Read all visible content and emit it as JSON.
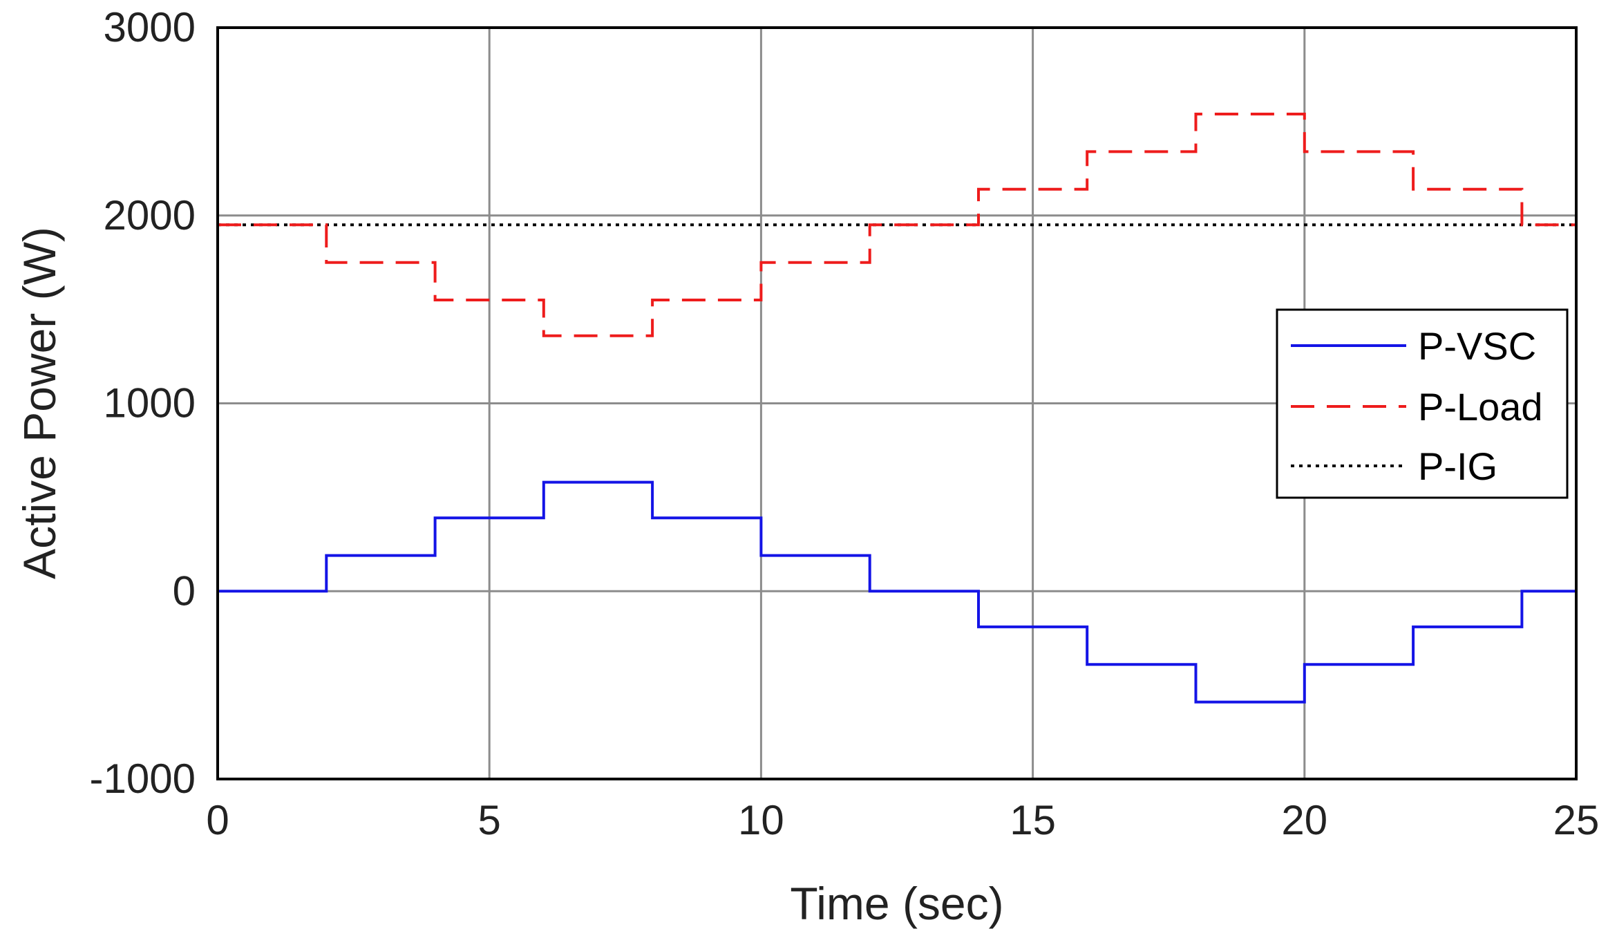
{
  "chart_data": {
    "type": "line",
    "xlabel": "Time (sec)",
    "ylabel": "Active Power (W)",
    "xlim": [
      0,
      25
    ],
    "ylim": [
      -1000,
      3000
    ],
    "x_ticks": [
      0,
      5,
      10,
      15,
      20,
      25
    ],
    "y_ticks": [
      -1000,
      0,
      1000,
      2000,
      3000
    ],
    "x_tick_labels": [
      "0",
      "5",
      "10",
      "15",
      "20",
      "25"
    ],
    "y_tick_labels": [
      "-1000",
      "0",
      "1000",
      "2000",
      "3000"
    ],
    "grid": true,
    "legend_position": "right",
    "series": [
      {
        "name": "P-VSC",
        "color": "#1414e6",
        "style": "solid",
        "step_x": [
          0,
          2,
          4,
          6,
          8,
          10,
          12,
          14,
          16,
          18,
          20,
          22,
          24,
          25
        ],
        "step_y": [
          0,
          190,
          390,
          580,
          390,
          190,
          0,
          -190,
          -390,
          -590,
          -390,
          -190,
          0
        ]
      },
      {
        "name": "P-Load",
        "color": "#ee1c1c",
        "style": "dashed",
        "step_x": [
          0,
          2,
          4,
          6,
          8,
          10,
          12,
          14,
          16,
          18,
          20,
          22,
          24,
          25
        ],
        "step_y": [
          1950,
          1750,
          1550,
          1360,
          1550,
          1750,
          1950,
          2140,
          2340,
          2540,
          2340,
          2140,
          1950
        ]
      },
      {
        "name": "P-IG",
        "color": "#000000",
        "style": "dotted",
        "step_x": [
          0,
          25
        ],
        "step_y": [
          1950
        ]
      }
    ]
  }
}
